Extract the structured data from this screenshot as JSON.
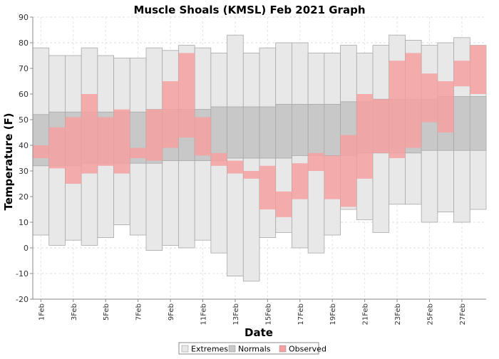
{
  "chart_data": {
    "type": "bar",
    "title": "Muscle Shoals (KMSL) Feb 2021 Graph",
    "xlabel": "Date",
    "ylabel": "Temperature (F)",
    "ylim": [
      -20,
      90
    ],
    "yticks": [
      -20,
      -10,
      0,
      10,
      20,
      30,
      40,
      50,
      60,
      70,
      80,
      90
    ],
    "grid": true,
    "legend_position": "bottom",
    "days": [
      1,
      2,
      3,
      4,
      5,
      6,
      7,
      8,
      9,
      10,
      11,
      12,
      13,
      14,
      15,
      16,
      17,
      18,
      19,
      20,
      21,
      22,
      23,
      24,
      25,
      26,
      27,
      28
    ],
    "x_tick_labels": [
      "1Feb",
      "3Feb",
      "5Feb",
      "7Feb",
      "9Feb",
      "11Feb",
      "13Feb",
      "15Feb",
      "17Feb",
      "19Feb",
      "21Feb",
      "23Feb",
      "25Feb",
      "27Feb"
    ],
    "series": [
      {
        "name": "Extremes",
        "color": "#e8e8e8",
        "low": [
          5,
          1,
          3,
          1,
          4,
          9,
          5,
          -1,
          1,
          0,
          3,
          -2,
          -11,
          -13,
          4,
          6,
          0,
          -2,
          5,
          15,
          11,
          6,
          17,
          17,
          10,
          14,
          10,
          15
        ],
        "high": [
          78,
          75,
          75,
          78,
          75,
          74,
          74,
          78,
          77,
          79,
          78,
          76,
          83,
          76,
          78,
          80,
          80,
          76,
          76,
          79,
          76,
          79,
          83,
          81,
          79,
          80,
          82,
          79
        ]
      },
      {
        "name": "Normals",
        "color": "#c8c8c8",
        "low": [
          32,
          32,
          32,
          33,
          33,
          33,
          33,
          33,
          34,
          34,
          34,
          34,
          35,
          35,
          35,
          35,
          36,
          36,
          36,
          36,
          37,
          37,
          37,
          37,
          38,
          38,
          38,
          38
        ],
        "high": [
          52,
          53,
          53,
          53,
          53,
          53,
          53,
          54,
          54,
          54,
          54,
          55,
          55,
          55,
          55,
          56,
          56,
          56,
          56,
          57,
          57,
          58,
          58,
          58,
          58,
          59,
          59,
          59
        ]
      },
      {
        "name": "Observed",
        "color": "#f4a0a0",
        "low": [
          35,
          31,
          25,
          29,
          32,
          29,
          35,
          34,
          39,
          43,
          36,
          32,
          29,
          27,
          15,
          12,
          19,
          30,
          19,
          16,
          27,
          37,
          35,
          39,
          49,
          45,
          63,
          60
        ],
        "high": [
          40,
          47,
          51,
          60,
          51,
          54,
          39,
          54,
          65,
          76,
          51,
          37,
          34,
          30,
          32,
          22,
          33,
          37,
          36,
          44,
          60,
          58,
          73,
          76,
          68,
          65,
          73,
          79
        ]
      }
    ]
  }
}
